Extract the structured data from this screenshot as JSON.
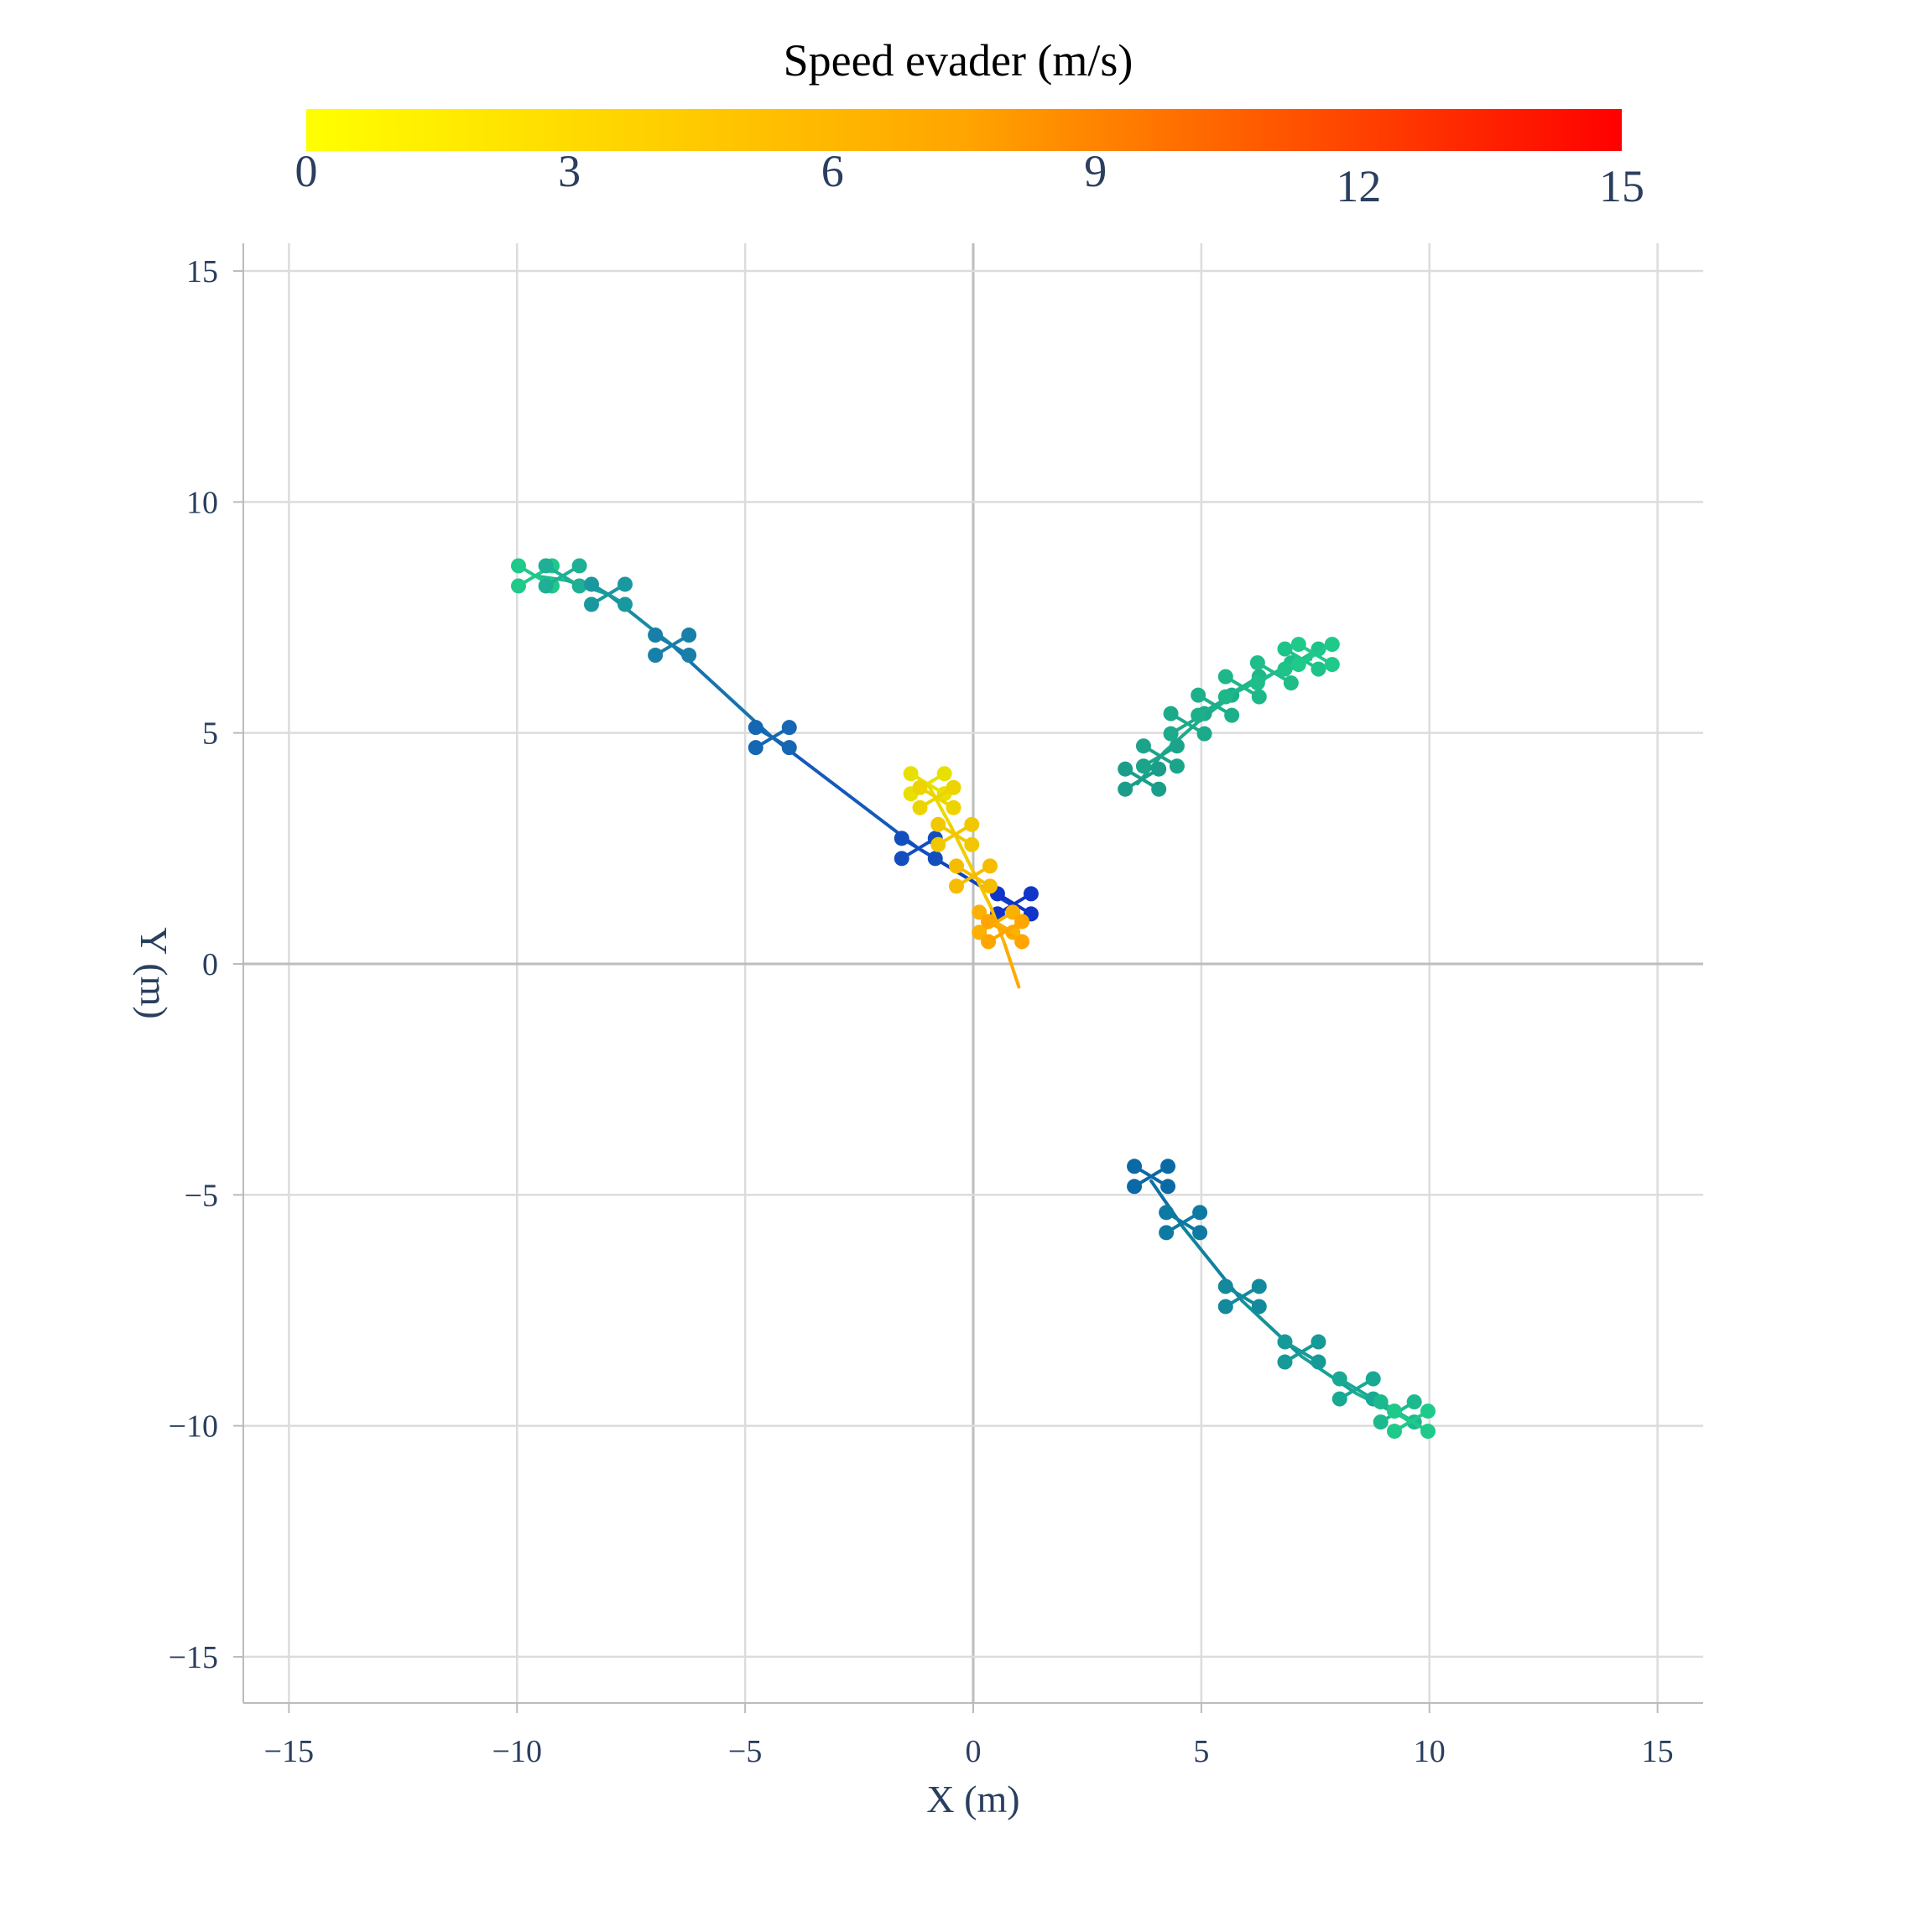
{
  "chart_data": {
    "type": "line",
    "title": "",
    "xlabel": "X (m)",
    "ylabel": "Y (m)",
    "xlim": [
      -16,
      16
    ],
    "ylim": [
      -16,
      15.6
    ],
    "x_ticks": [
      -15,
      -10,
      -5,
      0,
      5,
      10,
      15
    ],
    "y_ticks": [
      -15,
      -10,
      -5,
      0,
      5,
      10,
      15
    ],
    "x_tick_labels": [
      "−15",
      "−10",
      "−5",
      "0",
      "5",
      "10",
      "15"
    ],
    "y_tick_labels": [
      "−15",
      "−10",
      "−5",
      "0",
      "5",
      "10",
      "15"
    ],
    "grid": true,
    "colorbar": {
      "title": "Speed evader (m/s)",
      "range": [
        0,
        15
      ],
      "ticks": [
        0,
        3,
        6,
        9,
        12,
        15
      ],
      "tick_labels": [
        "0",
        "3",
        "6",
        "9",
        "12",
        "15"
      ],
      "colors": [
        "#ffff00",
        "#ffa500",
        "#ff0000"
      ]
    },
    "series": [
      {
        "role": "pursuer",
        "color_start": "#1fc98a",
        "color_end": "#1035c8",
        "x": [
          -9.6,
          -8.9,
          -8.0,
          -6.6,
          -4.4,
          -1.2,
          0.8
        ],
        "y": [
          8.4,
          8.3,
          8.0,
          6.9,
          4.9,
          2.5,
          1.3
        ],
        "markers": [
          {
            "x": -9.6,
            "y": 8.4
          },
          {
            "x": -9.0,
            "y": 8.4
          },
          {
            "x": -8.0,
            "y": 8.0
          },
          {
            "x": -6.6,
            "y": 6.9
          },
          {
            "x": -4.4,
            "y": 4.9
          },
          {
            "x": -1.2,
            "y": 2.5
          },
          {
            "x": 0.9,
            "y": 1.3
          }
        ]
      },
      {
        "role": "pursuer",
        "color_start": "#1a9e8a",
        "color_end": "#1fc98a",
        "x": [
          3.6,
          4.2,
          5.0,
          5.8,
          6.6,
          7.4
        ],
        "y": [
          3.9,
          4.6,
          5.3,
          5.9,
          6.3,
          6.6
        ],
        "markers": [
          {
            "x": 3.7,
            "y": 4.0
          },
          {
            "x": 4.1,
            "y": 4.5
          },
          {
            "x": 4.7,
            "y": 5.2
          },
          {
            "x": 5.3,
            "y": 5.6
          },
          {
            "x": 5.9,
            "y": 6.0
          },
          {
            "x": 6.6,
            "y": 6.3
          },
          {
            "x": 7.2,
            "y": 6.6
          },
          {
            "x": 7.5,
            "y": 6.7
          }
        ]
      },
      {
        "role": "pursuer",
        "color_start": "#0b6aa5",
        "color_end": "#1fc98a",
        "x": [
          3.9,
          4.6,
          5.9,
          7.2,
          8.4,
          9.4,
          9.7
        ],
        "y": [
          -4.7,
          -5.7,
          -7.3,
          -8.5,
          -9.3,
          -9.8,
          -10.0
        ],
        "markers": [
          {
            "x": 3.9,
            "y": -4.6
          },
          {
            "x": 4.6,
            "y": -5.6
          },
          {
            "x": 5.9,
            "y": -7.2
          },
          {
            "x": 7.2,
            "y": -8.4
          },
          {
            "x": 8.4,
            "y": -9.2
          },
          {
            "x": 9.3,
            "y": -9.7
          },
          {
            "x": 9.6,
            "y": -9.9
          }
        ]
      },
      {
        "role": "evader",
        "color_start": "#e8e000",
        "color_end": "#ffa500",
        "x": [
          -1.0,
          -0.5,
          0.0,
          0.4,
          0.7,
          1.0
        ],
        "y": [
          3.9,
          3.0,
          2.0,
          1.2,
          0.4,
          -0.5
        ],
        "markers": [
          {
            "x": -1.0,
            "y": 3.9
          },
          {
            "x": -0.8,
            "y": 3.6
          },
          {
            "x": -0.4,
            "y": 2.8
          },
          {
            "x": 0.0,
            "y": 1.9
          },
          {
            "x": 0.5,
            "y": 0.9
          },
          {
            "x": 0.7,
            "y": 0.7
          }
        ]
      }
    ]
  }
}
